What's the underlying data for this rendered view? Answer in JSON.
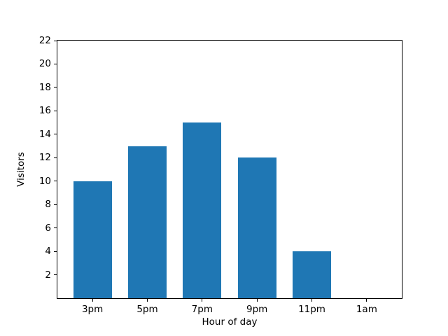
{
  "figure": {
    "background": "#ffffff",
    "spine_color": "#000000",
    "text_color": "#000000"
  },
  "chart_data": {
    "type": "bar",
    "categories": [
      "3pm",
      "5pm",
      "7pm",
      "9pm",
      "11pm",
      "1am"
    ],
    "values": [
      10,
      13,
      15,
      12,
      4,
      0
    ],
    "title": "",
    "xlabel": "Hour of day",
    "ylabel": "Visitors",
    "ylim": [
      0,
      22
    ],
    "xlim": [
      -0.64,
      5.64
    ],
    "yticks": [
      2,
      4,
      6,
      8,
      10,
      12,
      14,
      16,
      18,
      20,
      22
    ],
    "bar_width_units": 0.7,
    "bar_color": "#1f77b4",
    "grid": false,
    "legend": false
  }
}
